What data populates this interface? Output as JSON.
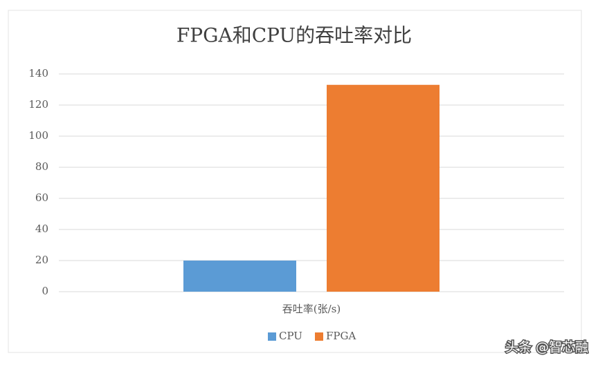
{
  "chart_data": {
    "type": "bar",
    "title": "FPGA和CPU的吞吐率对比",
    "categories": [
      "吞吐率(张/s)"
    ],
    "series": [
      {
        "name": "CPU",
        "color": "#5b9bd5",
        "values": [
          20
        ]
      },
      {
        "name": "FPGA",
        "color": "#ed7d31",
        "values": [
          133
        ]
      }
    ],
    "ylim": [
      0,
      140
    ],
    "yticks": [
      0,
      20,
      40,
      60,
      80,
      100,
      120,
      140
    ],
    "grid": true,
    "legend": "bottom"
  },
  "watermark": "头条 @智芯融"
}
